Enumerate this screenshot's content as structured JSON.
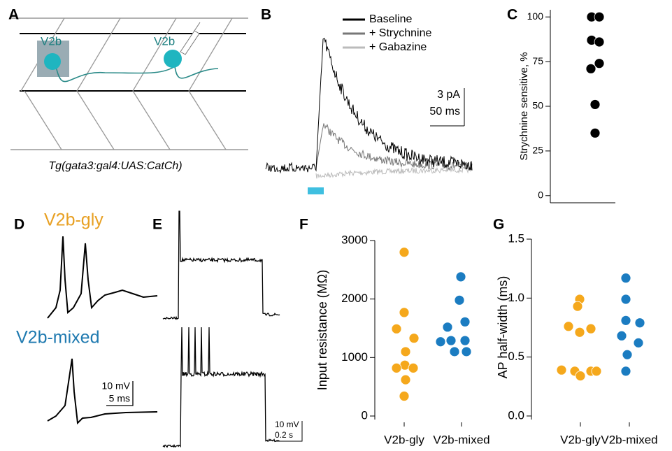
{
  "panel_labels": [
    "A",
    "B",
    "C",
    "D",
    "E",
    "F",
    "G"
  ],
  "panel_a": {
    "cell_labels": [
      "V2b",
      "V2b"
    ],
    "caption": "Tg(gata3:gal4:UAS:CatCh)"
  },
  "panel_b": {
    "legend": [
      "Baseline",
      "+ Strychnine",
      "+ Gabazine"
    ],
    "colors": [
      "#000000",
      "#777777",
      "#bbbbbb"
    ],
    "scale_bar": [
      "3 pA",
      "50 ms"
    ]
  },
  "panel_d": {
    "cell_types": [
      "V2b-gly",
      "V2b-mixed"
    ],
    "colors": [
      "#e8a023",
      "#1f7ab0"
    ],
    "scale_bar": [
      "10 mV",
      "5 ms"
    ]
  },
  "panel_e": {
    "scale_bar": [
      "10 mV",
      "0.2 s"
    ]
  },
  "chart_data": [
    {
      "type": "strip",
      "ylabel": "Strychnine sensitive, %",
      "values": [
        100,
        100,
        87,
        86,
        74,
        71,
        51,
        35
      ],
      "color": "#000000",
      "ylim": [
        -4,
        104
      ],
      "yticks": [
        0,
        25,
        50,
        75,
        100
      ]
    },
    {
      "type": "strip",
      "ylabel": "Input resistance (MΩ)",
      "categories": [
        "V2b-gly",
        "V2b-mixed"
      ],
      "colors": [
        "#f5a81c",
        "#1b7cc1"
      ],
      "values": [
        [
          2800,
          1770,
          1490,
          1330,
          1100,
          870,
          820,
          820,
          620,
          340
        ],
        [
          2380,
          1980,
          1610,
          1520,
          1290,
          1290,
          1270,
          1100,
          1100
        ]
      ],
      "ylim": [
        -60,
        3000
      ],
      "yticks": [
        0,
        1000,
        2000,
        3000
      ]
    },
    {
      "type": "strip",
      "ylabel": "AP half-width (ms)",
      "categories": [
        "V2b-gly",
        "V2b-mixed"
      ],
      "colors": [
        "#f5a81c",
        "#1b7cc1"
      ],
      "values": [
        [
          0.99,
          0.93,
          0.76,
          0.74,
          0.71,
          0.39,
          0.38,
          0.38,
          0.38,
          0.34
        ],
        [
          1.17,
          0.99,
          0.79,
          0.81,
          0.68,
          0.62,
          0.52,
          0.38
        ]
      ],
      "ylim": [
        -0.03,
        1.5
      ],
      "yticks": [
        {
          "value": 0,
          "label": "0.0"
        },
        {
          "value": 0.5,
          "label": "0.5"
        },
        {
          "value": 1,
          "label": "1.0"
        },
        {
          "value": 1.5,
          "label": "1.5"
        }
      ]
    }
  ]
}
